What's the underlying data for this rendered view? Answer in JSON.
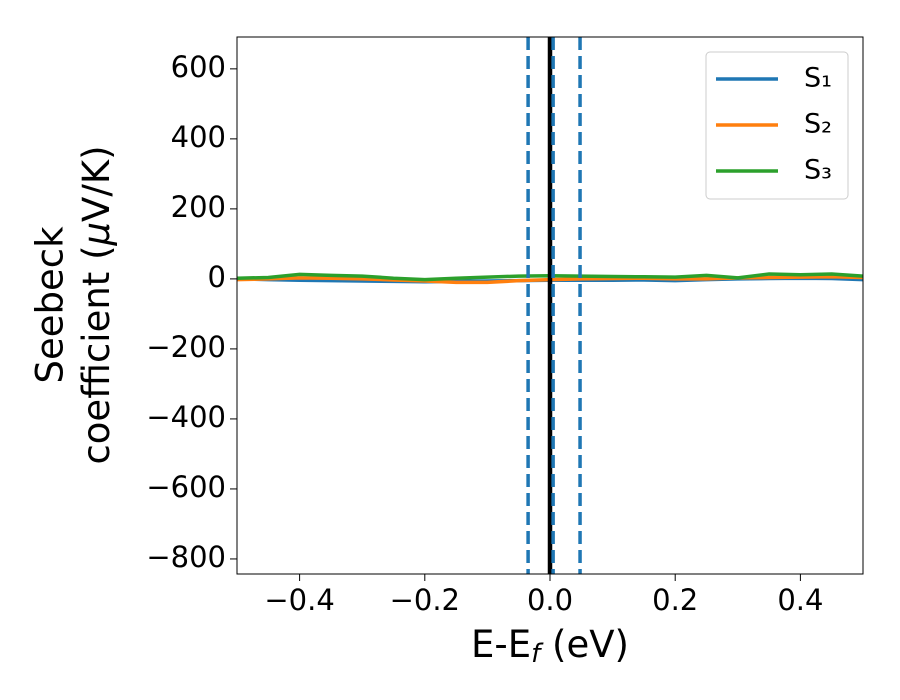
{
  "chart_data": {
    "type": "line",
    "xlabel": [
      "E-E",
      "f",
      " (eV)"
    ],
    "ylabel": [
      "Seebeck",
      "coefficient  (",
      "μ",
      "V/K)"
    ],
    "x": [
      -0.5,
      -0.45,
      -0.4,
      -0.35,
      -0.3,
      -0.25,
      -0.2,
      -0.15,
      -0.1,
      -0.05,
      0,
      0.05,
      0.1,
      0.15,
      0.2,
      0.25,
      0.3,
      0.35,
      0.4,
      0.45,
      0.5
    ],
    "series": [
      {
        "name": "S₁",
        "color": "#1f77b4",
        "values": [
          0,
          -2,
          -4,
          -5,
          -6,
          -7,
          -8,
          -7,
          -6,
          -5,
          -4,
          -4,
          -4,
          -3,
          -5,
          -2,
          0,
          1,
          2,
          1,
          -2
        ]
      },
      {
        "name": "S₂",
        "color": "#ff7f0e",
        "values": [
          -2,
          0,
          3,
          2,
          0,
          -3,
          -6,
          -10,
          -10,
          -5,
          -2,
          0,
          1,
          2,
          0,
          0,
          3,
          4,
          5,
          6,
          4
        ]
      },
      {
        "name": "S₃",
        "color": "#2ca02c",
        "values": [
          2,
          4,
          13,
          10,
          8,
          2,
          -2,
          2,
          5,
          8,
          9,
          8,
          7,
          6,
          5,
          10,
          3,
          14,
          12,
          14,
          8
        ]
      }
    ],
    "vlines": [
      {
        "x": -0.035,
        "color": "#1f77b4",
        "style": "dashed"
      },
      {
        "x": 0,
        "color": "#000000",
        "style": "solid"
      },
      {
        "x": 0.005,
        "color": "#1f77b4",
        "style": "dashed"
      },
      {
        "x": 0.048,
        "color": "#1f77b4",
        "style": "dashed"
      }
    ],
    "xlim": [
      -0.5,
      0.5
    ],
    "ylim": [
      -843,
      691
    ],
    "xticks": [
      {
        "value": -0.4,
        "label": "−0.4"
      },
      {
        "value": -0.2,
        "label": "−0.2"
      },
      {
        "value": 0,
        "label": "0.0"
      },
      0.2,
      0.4
    ],
    "yticks": [
      {
        "value": -800,
        "label": "−800"
      },
      {
        "value": -600,
        "label": "−600"
      },
      {
        "value": -400,
        "label": "−400"
      },
      {
        "value": -200,
        "label": "−200"
      },
      0,
      200,
      400,
      600
    ],
    "legend": "upper right",
    "grid": false
  }
}
